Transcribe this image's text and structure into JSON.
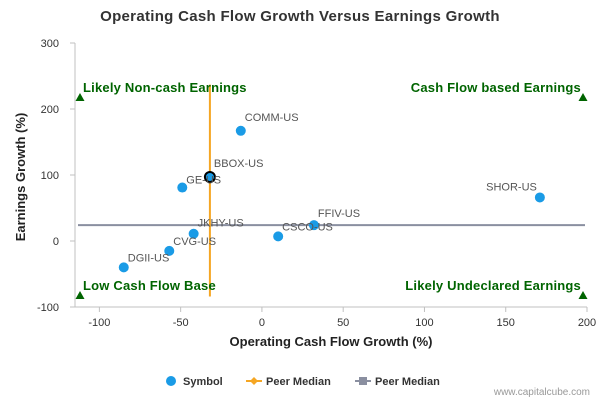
{
  "chart_data": {
    "type": "scatter",
    "title": "Operating Cash Flow Growth Versus Earnings Growth",
    "xlabel": "Operating Cash Flow Growth (%)",
    "ylabel": "Earnings Growth (%)",
    "xlim": [
      -115,
      200
    ],
    "ylim": [
      -100,
      300
    ],
    "x_ticks": [
      -100,
      -50,
      0,
      50,
      100,
      150,
      200
    ],
    "y_ticks": [
      -100,
      0,
      100,
      200,
      300
    ],
    "x_tick_labels": [
      "-100",
      "-50",
      "0",
      "50",
      "100",
      "150",
      "200"
    ],
    "y_tick_labels": [
      "-100",
      "0",
      "100",
      "200",
      "300"
    ],
    "grid": false,
    "points": [
      {
        "label": "COMM-US",
        "x": -13,
        "y": 167
      },
      {
        "label": "BBOX-US",
        "x": -32,
        "y": 97,
        "highlight": true
      },
      {
        "label": "GE-US",
        "x": -49,
        "y": 81
      },
      {
        "label": "SHOR-US",
        "x": 171,
        "y": 66
      },
      {
        "label": "FFIV-US",
        "x": 32,
        "y": 24
      },
      {
        "label": "CSCO-US",
        "x": 10,
        "y": 7
      },
      {
        "label": "JKHY-US",
        "x": -42,
        "y": 11
      },
      {
        "label": "CVG-US",
        "x": -57,
        "y": -15
      },
      {
        "label": "DGII-US",
        "x": -85,
        "y": -40
      }
    ],
    "peer_median_x": -32,
    "peer_median_y": 24,
    "quadrant_labels": {
      "top_left": "Likely Non-cash Earnings",
      "top_right": "Cash Flow based Earnings",
      "bottom_left": "Low Cash Flow Base",
      "bottom_right": "Likely Undeclared Earnings"
    },
    "legend": {
      "placement": "bottom",
      "items": [
        {
          "label": "Symbol",
          "marker": "circle",
          "color": "#1a9be6"
        },
        {
          "label": "Peer Median",
          "marker": "line-diamond",
          "color": "#f5a623"
        },
        {
          "label": "Peer Median",
          "marker": "line-square",
          "color": "#8a8fa0"
        }
      ]
    },
    "colors": {
      "point": "#1a9be6",
      "x_median_line": "#f5a623",
      "y_median_line": "#8a8fa0",
      "quadrant_text": "#006400",
      "axis": "#c0c0c0"
    }
  },
  "credit": "www.capitalcube.com"
}
